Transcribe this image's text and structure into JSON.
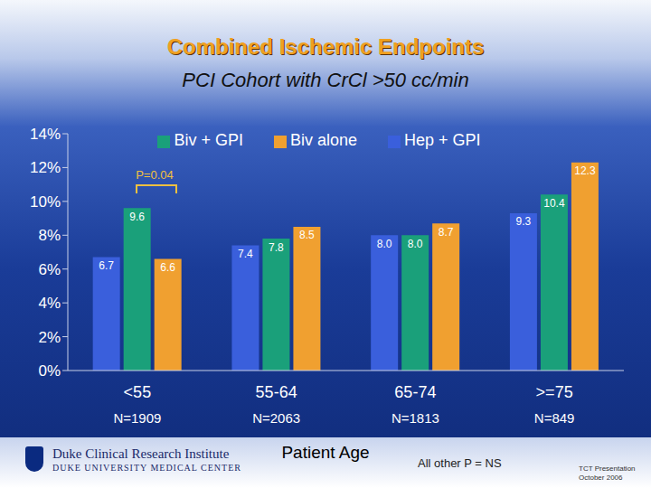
{
  "chart_data": {
    "type": "bar",
    "title": "Combined Ischemic Endpoints",
    "subtitle": "PCI Cohort with CrCl >50 cc/min",
    "x_label": "Patient Age",
    "categories": [
      "<55",
      "55-64",
      "65-74",
      ">=75"
    ],
    "sample_sizes": [
      "N=1909",
      "N=2063",
      "N=1813",
      "N=849"
    ],
    "series": [
      {
        "name": "Hep + GPI",
        "color": "#3a5fdc",
        "values": [
          6.7,
          7.4,
          8.0,
          9.3
        ],
        "value_labels": [
          "6.7",
          "7.4",
          "8.0",
          "9.3"
        ]
      },
      {
        "name": "Biv + GPI",
        "color": "#1aa07a",
        "values": [
          9.6,
          7.8,
          8.0,
          10.4
        ],
        "value_labels": [
          "9.6",
          "7.8",
          "8.0",
          "10.4"
        ]
      },
      {
        "name": "Biv alone",
        "color": "#f0a030",
        "values": [
          6.6,
          8.5,
          8.7,
          12.3
        ],
        "value_labels": [
          "6.6",
          "8.5",
          "8.7",
          "12.3"
        ]
      }
    ],
    "ylim": [
      0,
      14
    ],
    "yticks": [
      {
        "value": 0,
        "label": "0%"
      },
      {
        "value": 2,
        "label": "2%"
      },
      {
        "value": 4,
        "label": "4%"
      },
      {
        "value": 6,
        "label": "6%"
      },
      {
        "value": 8,
        "label": "8%"
      },
      {
        "value": 10,
        "label": "10%"
      },
      {
        "value": 12,
        "label": "12%"
      },
      {
        "value": 14,
        "label": "14%"
      }
    ],
    "grid": false,
    "legend": "top",
    "data_labels": true,
    "annotations": [
      "P=0.04",
      "All other P = NS"
    ],
    "footer": {
      "institution": "Duke Clinical Research Institute",
      "center": "DUKE UNIVERSITY MEDICAL CENTER",
      "presentation": "TCT Presentation",
      "date": "October 2006"
    }
  }
}
